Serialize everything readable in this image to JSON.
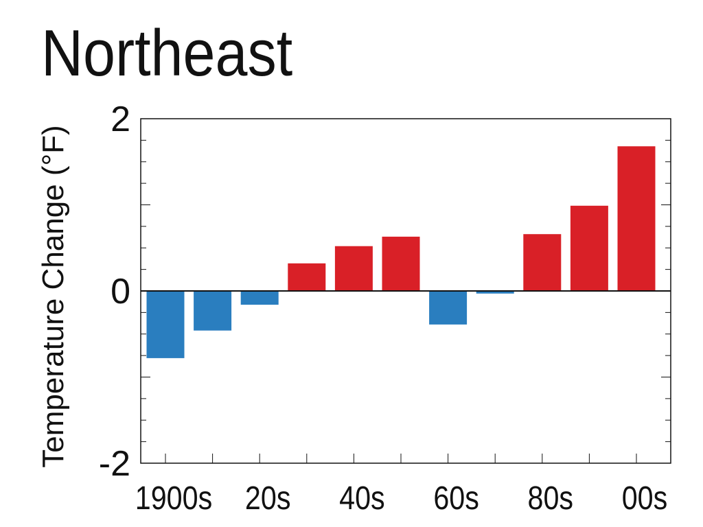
{
  "chart_data": {
    "type": "bar",
    "title": "Northeast",
    "ylabel": "Temperature Change (°F)",
    "xlabel": "",
    "ylim": [
      -2,
      2
    ],
    "yticks_labeled": [
      "2",
      "0",
      "-2"
    ],
    "categories": [
      "1900s",
      "10s",
      "20s",
      "30s",
      "40s",
      "50s",
      "60s",
      "70s",
      "80s",
      "90s",
      "00s"
    ],
    "x_tick_labels": [
      {
        "category_index": 0,
        "text": "1900s"
      },
      {
        "category_index": 2,
        "text": "20s"
      },
      {
        "category_index": 4,
        "text": "40s"
      },
      {
        "category_index": 6,
        "text": "60s"
      },
      {
        "category_index": 8,
        "text": "80s"
      },
      {
        "category_index": 10,
        "text": "00s"
      }
    ],
    "values": [
      -0.78,
      -0.46,
      -0.16,
      0.32,
      0.52,
      0.63,
      -0.39,
      -0.03,
      0.66,
      0.99,
      1.68
    ],
    "colors": {
      "positive": "#d92027",
      "negative": "#2a7ebf",
      "axis": "#111111"
    },
    "grid": false,
    "legend": "none"
  }
}
